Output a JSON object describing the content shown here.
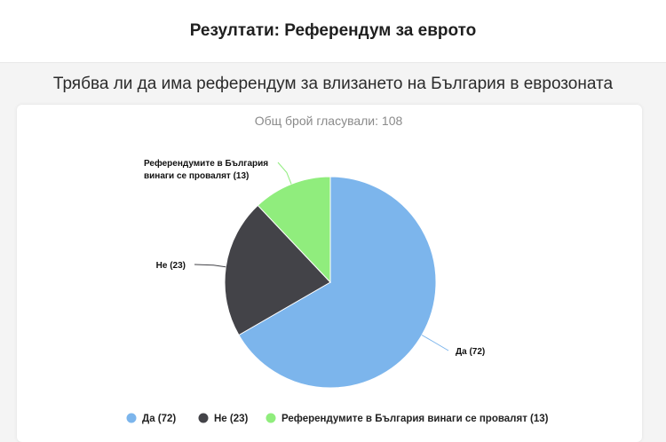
{
  "header": {
    "title": "Резултати: Референдум за еврото"
  },
  "question": "Трябва ли да има референдум за влизането на България в еврозоната",
  "total_votes_label": "Общ брой гласували: 108",
  "chart_data": {
    "type": "pie",
    "title": "",
    "slices": [
      {
        "label": "Да (72)",
        "name": "Да",
        "value": 72,
        "color": "#7cb5ec"
      },
      {
        "label": "Не (23)",
        "name": "Не",
        "value": 23,
        "color": "#434348"
      },
      {
        "label": "Референдумите в България винаги се провалят (13)",
        "name": "Референдумите в България винаги се провалят",
        "value": 13,
        "color": "#90ed7d"
      }
    ],
    "total": 108,
    "legend_position": "bottom",
    "legend": [
      {
        "label": "Да (72)",
        "color": "#7cb5ec"
      },
      {
        "label": "Не (23)",
        "color": "#434348"
      },
      {
        "label": "Референдумите в България винаги се провалят (13)",
        "color": "#90ed7d"
      }
    ],
    "data_labels": [
      {
        "lines": [
          "Да (72)"
        ]
      },
      {
        "lines": [
          "Не (23)"
        ]
      },
      {
        "lines": [
          "Референдумите в България",
          "винаги се провалят (13)"
        ]
      }
    ]
  }
}
